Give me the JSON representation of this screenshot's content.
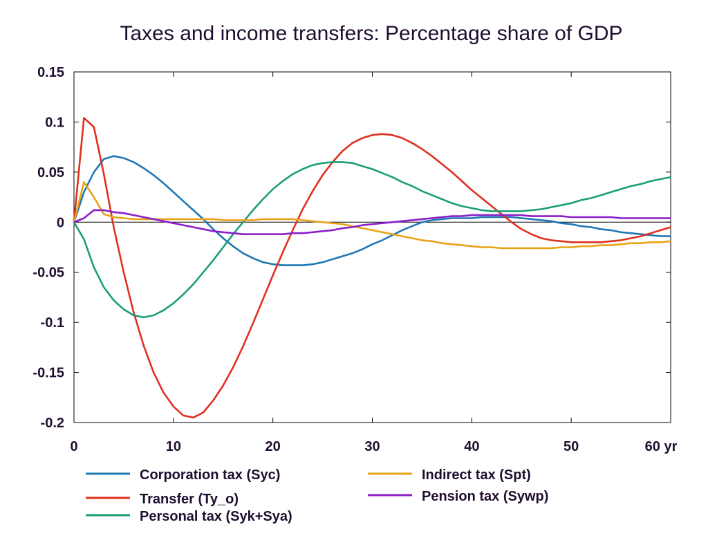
{
  "chart_data": {
    "type": "line",
    "title": "Taxes and income transfers: Percentage share of GDP",
    "x_unit_label": "yr",
    "xlim": [
      0,
      60
    ],
    "ylim": [
      -0.2,
      0.15
    ],
    "x_ticks": [
      {
        "value": 0,
        "label": "0"
      },
      {
        "value": 10,
        "label": "10"
      },
      {
        "value": 20,
        "label": "20"
      },
      {
        "value": 30,
        "label": "30"
      },
      {
        "value": 40,
        "label": "40"
      },
      {
        "value": 50,
        "label": "50"
      },
      {
        "value": 60,
        "label": "60 yr"
      }
    ],
    "y_ticks": [
      {
        "value": 0.15,
        "label": "0.15"
      },
      {
        "value": 0.1,
        "label": "0.1"
      },
      {
        "value": 0.05,
        "label": "0.05"
      },
      {
        "value": 0,
        "label": "0"
      },
      {
        "value": -0.05,
        "label": "-0.05"
      },
      {
        "value": -0.1,
        "label": "-0.1"
      },
      {
        "value": -0.15,
        "label": "-0.15"
      },
      {
        "value": -0.2,
        "label": "-0.2"
      }
    ],
    "grid": false,
    "legend_position": "bottom",
    "x": [
      0,
      1,
      2,
      3,
      4,
      5,
      6,
      7,
      8,
      9,
      10,
      11,
      12,
      13,
      14,
      15,
      16,
      17,
      18,
      19,
      20,
      21,
      22,
      23,
      24,
      25,
      26,
      27,
      28,
      29,
      30,
      31,
      32,
      33,
      34,
      35,
      36,
      37,
      38,
      39,
      40,
      41,
      42,
      43,
      44,
      45,
      46,
      47,
      48,
      49,
      50,
      51,
      52,
      53,
      54,
      55,
      56,
      57,
      58,
      59,
      60
    ],
    "series": [
      {
        "name": "Corporation tax (Syc)",
        "color": "#1f77b4",
        "values": [
          0,
          0.03,
          0.05,
          0.063,
          0.066,
          0.064,
          0.06,
          0.054,
          0.047,
          0.039,
          0.03,
          0.021,
          0.012,
          0.003,
          -0.007,
          -0.016,
          -0.024,
          -0.031,
          -0.036,
          -0.04,
          -0.042,
          -0.043,
          -0.043,
          -0.043,
          -0.042,
          -0.04,
          -0.037,
          -0.034,
          -0.031,
          -0.027,
          -0.022,
          -0.018,
          -0.013,
          -0.008,
          -0.004,
          0,
          0.002,
          0.003,
          0.004,
          0.004,
          0.004,
          0.005,
          0.005,
          0.005,
          0.005,
          0.004,
          0.003,
          0.002,
          0.001,
          -0.001,
          -0.002,
          -0.004,
          -0.005,
          -0.007,
          -0.008,
          -0.01,
          -0.011,
          -0.012,
          -0.013,
          -0.014,
          -0.014
        ]
      },
      {
        "name": "Transfer (Ty_o)",
        "color": "#e0301e",
        "values": [
          0,
          0.104,
          0.095,
          0.048,
          -0.005,
          -0.05,
          -0.09,
          -0.123,
          -0.15,
          -0.17,
          -0.184,
          -0.193,
          -0.195,
          -0.19,
          -0.178,
          -0.163,
          -0.145,
          -0.124,
          -0.101,
          -0.077,
          -0.053,
          -0.03,
          -0.008,
          0.013,
          0.031,
          0.047,
          0.06,
          0.071,
          0.079,
          0.084,
          0.087,
          0.088,
          0.087,
          0.084,
          0.079,
          0.073,
          0.066,
          0.058,
          0.05,
          0.041,
          0.032,
          0.024,
          0.016,
          0.008,
          0,
          -0.007,
          -0.012,
          -0.016,
          -0.018,
          -0.019,
          -0.02,
          -0.02,
          -0.02,
          -0.02,
          -0.019,
          -0.018,
          -0.016,
          -0.014,
          -0.011,
          -0.008,
          -0.005
        ]
      },
      {
        "name": "Personal tax (Syk+Sya)",
        "color": "#1a9e76",
        "values": [
          0,
          -0.017,
          -0.045,
          -0.065,
          -0.078,
          -0.087,
          -0.093,
          -0.095,
          -0.093,
          -0.088,
          -0.081,
          -0.072,
          -0.062,
          -0.05,
          -0.038,
          -0.025,
          -0.012,
          0,
          0.012,
          0.023,
          0.033,
          0.041,
          0.048,
          0.053,
          0.057,
          0.059,
          0.06,
          0.06,
          0.059,
          0.056,
          0.053,
          0.049,
          0.045,
          0.04,
          0.036,
          0.031,
          0.027,
          0.023,
          0.019,
          0.016,
          0.014,
          0.012,
          0.011,
          0.011,
          0.011,
          0.011,
          0.012,
          0.013,
          0.015,
          0.017,
          0.019,
          0.022,
          0.024,
          0.027,
          0.03,
          0.033,
          0.036,
          0.038,
          0.041,
          0.043,
          0.045
        ]
      },
      {
        "name": "Indirect tax (Spt)",
        "color": "#e8a317",
        "values": [
          0,
          0.04,
          0.025,
          0.008,
          0.005,
          0.004,
          0.003,
          0.003,
          0.003,
          0.003,
          0.003,
          0.003,
          0.003,
          0.003,
          0.003,
          0.002,
          0.002,
          0.002,
          0.002,
          0.003,
          0.003,
          0.003,
          0.003,
          0.002,
          0.001,
          0,
          -0.001,
          -0.002,
          -0.004,
          -0.006,
          -0.008,
          -0.01,
          -0.012,
          -0.014,
          -0.016,
          -0.018,
          -0.019,
          -0.021,
          -0.022,
          -0.023,
          -0.024,
          -0.025,
          -0.025,
          -0.026,
          -0.026,
          -0.026,
          -0.026,
          -0.026,
          -0.026,
          -0.025,
          -0.025,
          -0.024,
          -0.024,
          -0.023,
          -0.023,
          -0.022,
          -0.021,
          -0.021,
          -0.02,
          -0.02,
          -0.019
        ]
      },
      {
        "name": "Pension tax (Sywp)",
        "color": "#8a1ec8",
        "values": [
          0,
          0.004,
          0.012,
          0.012,
          0.01,
          0.009,
          0.007,
          0.005,
          0.003,
          0.001,
          -0.001,
          -0.003,
          -0.005,
          -0.007,
          -0.009,
          -0.01,
          -0.011,
          -0.012,
          -0.012,
          -0.012,
          -0.012,
          -0.012,
          -0.011,
          -0.011,
          -0.01,
          -0.009,
          -0.008,
          -0.006,
          -0.005,
          -0.003,
          -0.002,
          -0.001,
          0,
          0.001,
          0.002,
          0.003,
          0.004,
          0.005,
          0.006,
          0.006,
          0.007,
          0.007,
          0.007,
          0.007,
          0.007,
          0.007,
          0.006,
          0.006,
          0.006,
          0.006,
          0.005,
          0.005,
          0.005,
          0.005,
          0.005,
          0.004,
          0.004,
          0.004,
          0.004,
          0.004,
          0.004
        ]
      }
    ]
  }
}
